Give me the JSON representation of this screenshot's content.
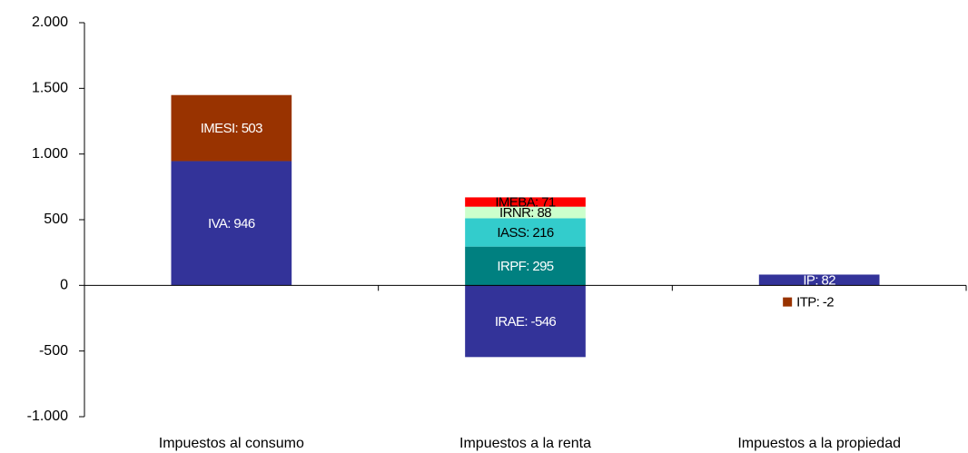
{
  "chart_data": {
    "type": "stacked_bar",
    "categories": [
      "Impuestos al consumo",
      "Impuestos a la renta",
      "Impuestos a la propiedad"
    ],
    "series": [
      {
        "name": "IVA",
        "color": "#333399",
        "label_color": "#ffffff",
        "values": [
          946,
          null,
          null
        ],
        "value_labels": [
          "IVA: 946",
          null,
          null
        ]
      },
      {
        "name": "IMESI",
        "color": "#993300",
        "label_color": "#ffffff",
        "values": [
          503,
          null,
          null
        ],
        "value_labels": [
          "IMESI: 503",
          null,
          null
        ]
      },
      {
        "name": "IRAE",
        "color": "#333399",
        "label_color": "#ffffff",
        "values": [
          null,
          -546,
          null
        ],
        "value_labels": [
          null,
          "IRAE: -546",
          null
        ]
      },
      {
        "name": "IRPF",
        "color": "#008080",
        "label_color": "#ffffff",
        "values": [
          null,
          295,
          null
        ],
        "value_labels": [
          null,
          "IRPF: 295",
          null
        ]
      },
      {
        "name": "IASS",
        "color": "#33cccc",
        "label_color": "#000000",
        "values": [
          null,
          216,
          null
        ],
        "value_labels": [
          null,
          "IASS: 216",
          null
        ]
      },
      {
        "name": "IRNR",
        "color": "#ccffcc",
        "label_color": "#000000",
        "values": [
          null,
          88,
          null
        ],
        "value_labels": [
          null,
          "IRNR: 88",
          null
        ]
      },
      {
        "name": "IMEBA",
        "color": "#ff0000",
        "label_color": "#000000",
        "values": [
          null,
          71,
          null
        ],
        "value_labels": [
          null,
          "IMEBA: 71",
          null
        ]
      },
      {
        "name": "IP",
        "color": "#333399",
        "label_color": "#ffffff",
        "values": [
          null,
          null,
          82
        ],
        "value_labels": [
          null,
          null,
          "IP: 82"
        ]
      },
      {
        "name": "ITP",
        "color": "#993300",
        "label_color": "#000000",
        "values": [
          null,
          null,
          -2
        ],
        "value_labels": [
          null,
          null,
          "ITP: -2"
        ]
      }
    ],
    "ylim": [
      -1000,
      2000
    ],
    "yticks": [
      {
        "value": -1000,
        "label": "-1.000"
      },
      -500,
      0,
      500,
      {
        "value": 1000,
        "label": "1.000"
      },
      {
        "value": 1500,
        "label": "1.500"
      },
      {
        "value": 2000,
        "label": "2.000"
      }
    ],
    "grid": false
  }
}
